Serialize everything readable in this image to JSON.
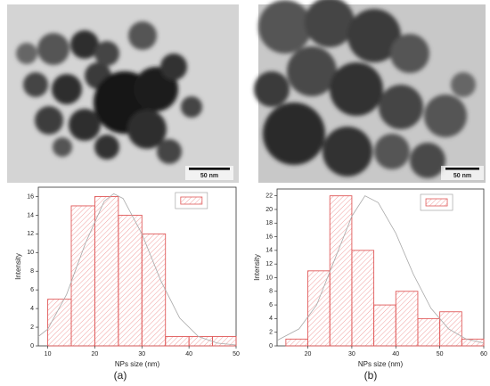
{
  "chart_data": [
    {
      "type": "histogram",
      "xlabel": "NPs size (nm)",
      "ylabel": "Intensity",
      "bins": [
        10,
        15,
        20,
        25,
        30,
        35,
        40,
        45,
        50
      ],
      "counts": [
        5,
        15,
        16,
        14,
        12,
        1,
        1,
        1
      ],
      "color": "#e05a5a",
      "xlim": [
        8,
        50
      ],
      "xticks": [
        10,
        20,
        30,
        40,
        50
      ],
      "ylim": [
        0,
        17
      ],
      "yticks": [
        0,
        2,
        4,
        6,
        8,
        10,
        12,
        14,
        16
      ],
      "legend": "upper right",
      "fit": {
        "color": "#aaaaaa",
        "x": [
          8,
          10,
          14,
          18,
          22,
          24,
          26,
          30,
          34,
          38,
          42,
          46,
          50
        ],
        "y": [
          1.0,
          1.8,
          5.5,
          11,
          15.5,
          16.3,
          15.8,
          12,
          7,
          3,
          1,
          0.3,
          0.1
        ]
      }
    },
    {
      "type": "histogram",
      "xlabel": "NPs size (nm)",
      "ylabel": "Intensity",
      "bins": [
        15,
        20,
        25,
        30,
        35,
        40,
        45,
        50,
        55,
        60
      ],
      "counts": [
        1,
        11,
        22,
        14,
        6,
        8,
        4,
        5,
        1
      ],
      "color": "#e05a5a",
      "xlim": [
        13,
        60
      ],
      "xticks": [
        20,
        30,
        40,
        50,
        60
      ],
      "ylim": [
        0,
        23
      ],
      "yticks": [
        0,
        2,
        4,
        6,
        8,
        10,
        12,
        14,
        16,
        18,
        20,
        22
      ],
      "legend": "upper right",
      "fit": {
        "color": "#aaaaaa",
        "x": [
          13,
          18,
          22,
          26,
          30,
          33,
          36,
          40,
          44,
          48,
          52,
          56,
          60
        ],
        "y": [
          0.8,
          2.5,
          6,
          12.5,
          19,
          22,
          21,
          16.5,
          10.5,
          5.5,
          2.5,
          1,
          0.4
        ]
      }
    }
  ],
  "panels": [
    {
      "scale_bar": "50 nm",
      "label": "(a)"
    },
    {
      "scale_bar": "50 nm",
      "label": "(b)"
    }
  ]
}
